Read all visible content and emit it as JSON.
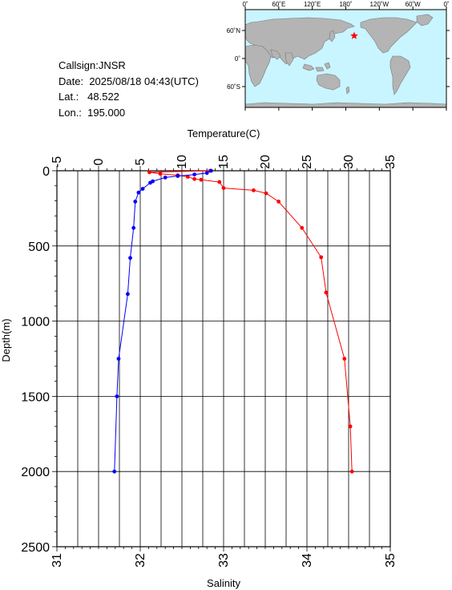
{
  "info": {
    "callsign_label": "Callsign:",
    "callsign": "JNSR",
    "date_label": "Date:",
    "date": "2025/08/18 04:43(UTC)",
    "lat_label": "Lat.:",
    "lat": "48.522",
    "lon_label": "Lon.:",
    "lon": "195.000"
  },
  "map": {
    "lon_labels": [
      "0˚",
      "60˚E",
      "120˚E",
      "180˚",
      "120˚W",
      "60˚W",
      "0˚"
    ],
    "lat_labels": [
      "60˚N",
      "0˚",
      "60˚S"
    ],
    "ocean_color": "#c8f5ff",
    "land_color": "#b4b4b4",
    "marker_color": "#ff0000",
    "marker_lon": 195.0,
    "marker_lat": 48.522
  },
  "chart_data": {
    "type": "line",
    "temperature_axis": {
      "label": "Temperature(C)",
      "range": [
        -5,
        35
      ],
      "ticks": [
        "-5",
        "0",
        "5",
        "10",
        "15",
        "20",
        "25",
        "30",
        "35"
      ]
    },
    "salinity_axis": {
      "label": "Salinity",
      "range": [
        31,
        35
      ],
      "ticks": [
        "31",
        "32",
        "33",
        "34",
        "35"
      ]
    },
    "depth_axis": {
      "label": "Depth(m)",
      "range": [
        0,
        2500
      ],
      "ticks": [
        "0",
        "500",
        "1000",
        "1500",
        "2000",
        "2500"
      ]
    },
    "grid": true,
    "series": [
      {
        "variable": "temperature",
        "color": "#ff0000",
        "points": [
          {
            "value": 13.4,
            "depth": 0
          },
          {
            "value": 6.1,
            "depth": 10
          },
          {
            "value": 7.4,
            "depth": 20
          },
          {
            "value": 9.5,
            "depth": 30
          },
          {
            "value": 10.7,
            "depth": 40
          },
          {
            "value": 11.5,
            "depth": 55
          },
          {
            "value": 12.3,
            "depth": 60
          },
          {
            "value": 14.5,
            "depth": 75
          },
          {
            "value": 15.0,
            "depth": 115
          },
          {
            "value": 18.6,
            "depth": 130
          },
          {
            "value": 20.1,
            "depth": 150
          },
          {
            "value": 21.6,
            "depth": 205
          },
          {
            "value": 24.4,
            "depth": 380
          },
          {
            "value": 26.7,
            "depth": 575
          },
          {
            "value": 27.3,
            "depth": 810
          },
          {
            "value": 29.5,
            "depth": 1250
          },
          {
            "value": 30.2,
            "depth": 1700
          },
          {
            "value": 30.4,
            "depth": 2000
          }
        ]
      },
      {
        "variable": "salinity",
        "color": "#0000ff",
        "points": [
          {
            "value": 32.85,
            "depth": 0
          },
          {
            "value": 32.8,
            "depth": 15
          },
          {
            "value": 32.65,
            "depth": 25
          },
          {
            "value": 32.45,
            "depth": 35
          },
          {
            "value": 32.3,
            "depth": 45
          },
          {
            "value": 32.15,
            "depth": 70
          },
          {
            "value": 32.12,
            "depth": 80
          },
          {
            "value": 32.03,
            "depth": 120
          },
          {
            "value": 31.98,
            "depth": 145
          },
          {
            "value": 31.94,
            "depth": 205
          },
          {
            "value": 31.92,
            "depth": 380
          },
          {
            "value": 31.88,
            "depth": 580
          },
          {
            "value": 31.85,
            "depth": 820
          },
          {
            "value": 31.74,
            "depth": 1250
          },
          {
            "value": 31.72,
            "depth": 1500
          },
          {
            "value": 31.69,
            "depth": 2000
          }
        ]
      }
    ]
  }
}
